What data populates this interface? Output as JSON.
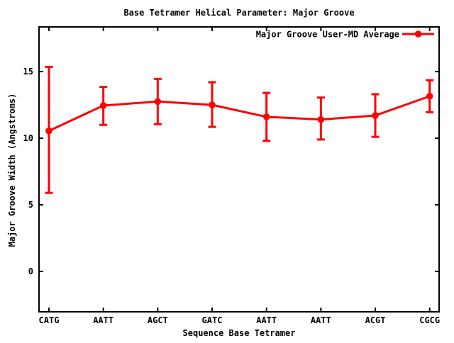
{
  "window": {
    "background": "#ffffff",
    "foreground": "#000000"
  },
  "chart_data": {
    "type": "line",
    "title": "Base Tetramer Helical Parameter: Major Groove",
    "xlabel": "Sequence Base Tetramer",
    "ylabel": "Major Groove Width (Angstroms)",
    "categories": [
      "CATG",
      "AATT",
      "AGCT",
      "GATC",
      "AATT",
      "AATT",
      "ACGT",
      "CGCG"
    ],
    "series": [
      {
        "name": "Major Groove User-MD Average",
        "values": [
          10.55,
          12.45,
          12.75,
          12.5,
          11.6,
          11.4,
          11.7,
          13.15
        ],
        "err_low": [
          5.9,
          11.0,
          11.05,
          10.85,
          9.8,
          9.9,
          10.1,
          11.95
        ],
        "err_high": [
          15.35,
          13.85,
          14.45,
          14.2,
          13.4,
          13.05,
          13.3,
          14.35
        ],
        "color": "#ff0000",
        "marker": "filled-circle",
        "error_bars": true
      }
    ],
    "yticks": [
      0,
      5,
      10,
      15
    ],
    "ylim": [
      -3.03,
      18.35
    ],
    "grid": false,
    "legend_position": "top-right-inside"
  }
}
